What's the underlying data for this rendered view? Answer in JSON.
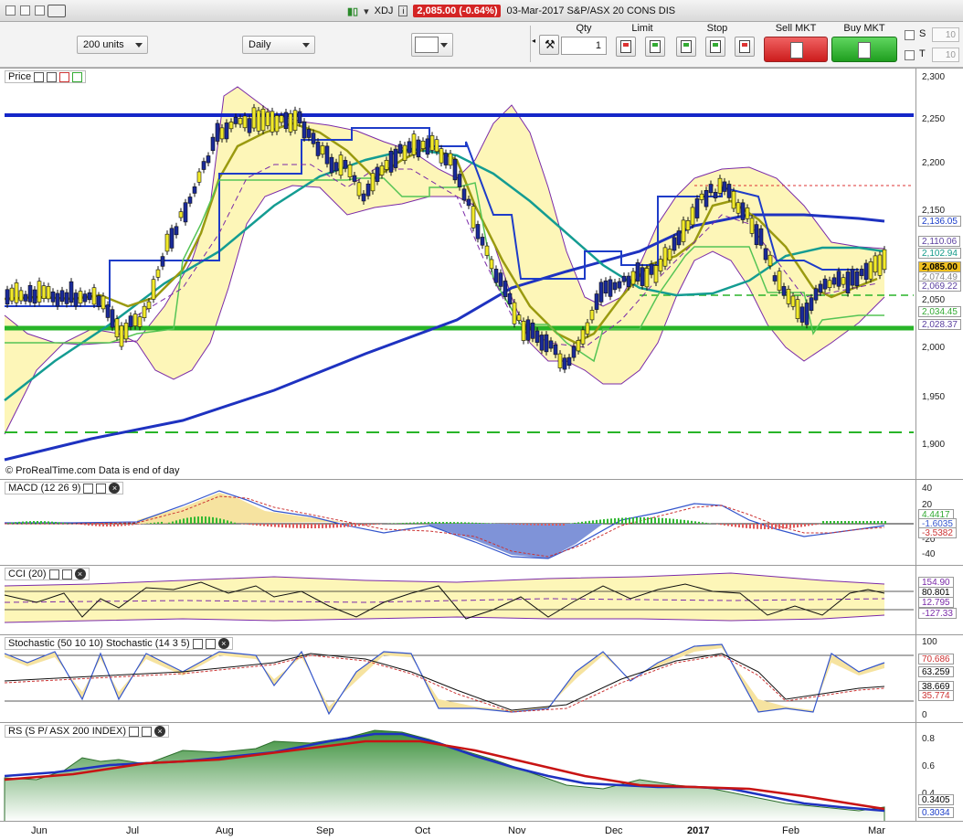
{
  "window": {
    "ticker": "XDJ",
    "last_price_badge": "2,085.00 (-0.64%)",
    "info": "03-Mar-2017 S&P/ASX 20 CONS DIS"
  },
  "toolbar": {
    "units_select": "200 units",
    "period_select": "Daily",
    "qty_label": "Qty",
    "qty_value": "1",
    "limit_label": "Limit",
    "stop_label": "Stop",
    "sell_label": "Sell MKT",
    "buy_label": "Buy MKT",
    "s_label": "S",
    "t_label": "T",
    "s_value": "10",
    "t_value": "10"
  },
  "price_panel": {
    "title": "Price",
    "footer": "© ProRealTime.com  Data is end of day",
    "y_ticks": [
      "2,300",
      "2,250",
      "2,200",
      "2,150",
      "2,100",
      "2,050",
      "2,000",
      "1,950",
      "1,900"
    ],
    "tags": [
      {
        "text": "2,136.05",
        "color": "#1a3cc8"
      },
      {
        "text": "2,110.06",
        "color": "#5a3fa0"
      },
      {
        "text": "2,102.94",
        "color": "#119988"
      },
      {
        "text": "2,085.00",
        "color": "#000000",
        "bg": "#f0c020"
      },
      {
        "text": "2,074.49",
        "color": "#888888"
      },
      {
        "text": "2,069.22",
        "color": "#5a3fa0"
      },
      {
        "text": "2,034.45",
        "color": "#33aa33"
      },
      {
        "text": "2,028.37",
        "color": "#5a3fa0"
      }
    ]
  },
  "macd_panel": {
    "title": "MACD (12 26 9)",
    "y_ticks": [
      "40",
      "20",
      "0",
      "-20",
      "-40"
    ],
    "tags": [
      {
        "text": "4.4417",
        "color": "#33aa33"
      },
      {
        "text": "-1.6035",
        "color": "#3355cc"
      },
      {
        "text": "-3.5382",
        "color": "#cc3333"
      }
    ]
  },
  "cci_panel": {
    "title": "CCI (20)",
    "tags": [
      {
        "text": "154.90",
        "color": "#7a2aa8"
      },
      {
        "text": "80.801",
        "color": "#000000"
      },
      {
        "text": "12.795",
        "color": "#7a2aa8"
      },
      {
        "text": "-127.33",
        "color": "#7a2aa8"
      }
    ]
  },
  "stoch_panel": {
    "title": "Stochastic (50 10 10) Stochastic (14 3 5)",
    "y_ticks": [
      "100",
      "0"
    ],
    "tags": [
      {
        "text": "70.686",
        "color": "#cc3333"
      },
      {
        "text": "63.259",
        "color": "#000000"
      },
      {
        "text": "38.669",
        "color": "#000000"
      },
      {
        "text": "35.774",
        "color": "#cc3333"
      }
    ]
  },
  "rs_panel": {
    "title": "RS (S P/ ASX 200 INDEX)",
    "y_ticks": [
      "0.8",
      "0.6",
      "0.4"
    ],
    "tags": [
      {
        "text": "0.3405",
        "color": "#000000"
      },
      {
        "text": "0.3034",
        "color": "#1a3cc8"
      }
    ]
  },
  "x_axis": {
    "labels": [
      "Jun",
      "Jul",
      "Aug",
      "Sep",
      "Oct",
      "Nov",
      "Dec",
      "2017",
      "Feb",
      "Mar"
    ]
  },
  "chart_data": {
    "type": "line",
    "title": "XDJ",
    "x": [
      "Jun",
      "Jul",
      "Aug",
      "Sep",
      "Oct",
      "Nov",
      "Dec",
      "2017",
      "Feb",
      "Mar"
    ],
    "series": [
      {
        "name": "Price (approx. close)",
        "values": [
          2055,
          2040,
          2215,
          2235,
          2200,
          2010,
          2075,
          2165,
          2030,
          2085
        ]
      }
    ],
    "ylim": [
      1880,
      2310
    ],
    "horizontal_lines": [
      2256,
      2022,
      1912
    ]
  }
}
